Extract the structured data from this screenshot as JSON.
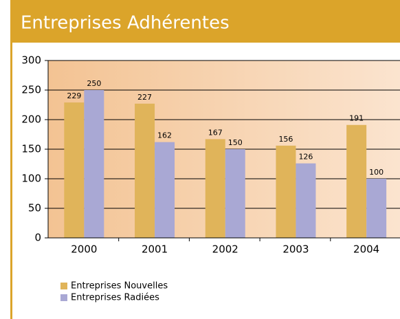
{
  "chart_data": {
    "type": "bar",
    "title": "Entreprises Adhérentes",
    "categories": [
      "2000",
      "2001",
      "2002",
      "2003",
      "2004"
    ],
    "series": [
      {
        "name": "Entreprises Nouvelles",
        "color": "#e0b45a",
        "values": [
          229,
          227,
          167,
          156,
          191
        ]
      },
      {
        "name": "Entreprises Radiées",
        "color": "#a9a8d4",
        "values": [
          250,
          162,
          150,
          126,
          100
        ]
      }
    ],
    "ylim": [
      0,
      300
    ],
    "yticks": [
      0,
      50,
      100,
      150,
      200,
      250,
      300
    ],
    "grid": true
  }
}
